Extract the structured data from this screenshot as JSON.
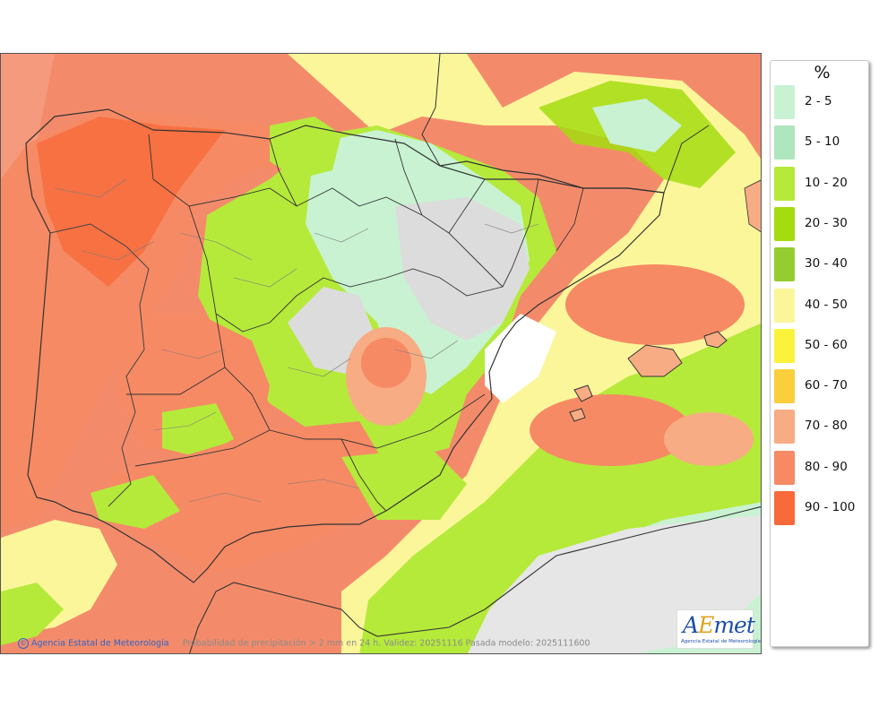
{
  "map": {
    "region": "Iberian Peninsula and Balearic Islands",
    "footer": {
      "agency": "Agencia Estatal de Meteorología",
      "caption": "Probabilidad de precipitación > 2 mm en 24 h. Validez: 20251116 Pasada modelo: 2025111600"
    },
    "logo": {
      "wordmark_a": "A",
      "wordmark_e": "E",
      "wordmark_rest": "met",
      "subtitle": "Agencia Estatal de Meteorología"
    },
    "colors": {
      "p2_5": "#c8f2d2",
      "p5_10": "#aee6bd",
      "p10_20": "#b5ea3b",
      "p20_30": "#a5dc10",
      "p30_40": "#95cc30",
      "p40_50": "#fbf69a",
      "p50_60": "#fbf23c",
      "p60_70": "#fbce3c",
      "p70_80": "#f8ac84",
      "p80_90": "#f68a64",
      "p90_100": "#f86a3a",
      "below2": "#e6e6e6",
      "dry_white": "#ffffff"
    }
  },
  "legend": {
    "title": "%",
    "items": [
      {
        "label": "2 - 5",
        "color": "#c8f2d2"
      },
      {
        "label": "5 - 10",
        "color": "#aee6bd"
      },
      {
        "label": "10 - 20",
        "color": "#b5ea3b"
      },
      {
        "label": "20 - 30",
        "color": "#a5dc10"
      },
      {
        "label": "30 - 40",
        "color": "#95cc30"
      },
      {
        "label": "40 - 50",
        "color": "#fbf69a"
      },
      {
        "label": "50 - 60",
        "color": "#fbf23c"
      },
      {
        "label": "60 - 70",
        "color": "#fbce3c"
      },
      {
        "label": "70 - 80",
        "color": "#f8ac84"
      },
      {
        "label": "80 - 90",
        "color": "#f68a64"
      },
      {
        "label": "90 - 100",
        "color": "#f86a3a"
      }
    ]
  }
}
